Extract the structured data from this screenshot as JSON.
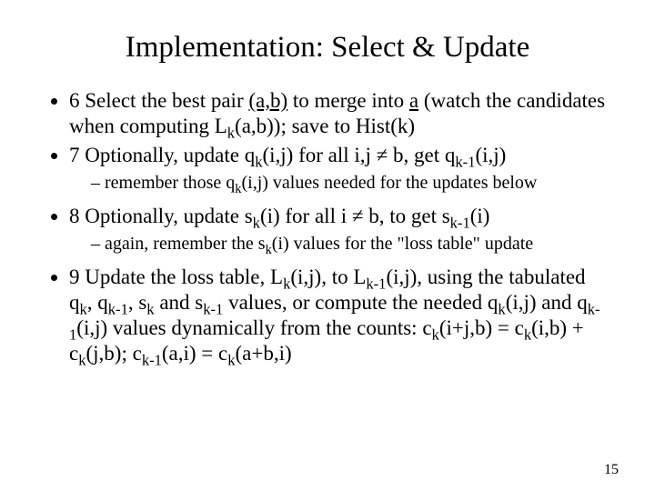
{
  "title": "Implementation: Select & Update",
  "bullets": {
    "b6": {
      "prefix": "6 Select the best pair ",
      "pair": "(a,b)",
      "mid1": " to merge into ",
      "a": "a",
      "mid2": " (watch the candidates when computing L",
      "sub1": "k",
      "tail": "(a,b)); save to Hist(k)"
    },
    "b7": {
      "prefix": "7 Optionally, update q",
      "sub1": "k",
      "mid1": "(i,j) for all i,j ≠ b, get q",
      "sub2": "k-1",
      "tail": "(i,j)"
    },
    "b7s": {
      "prefix": "remember those q",
      "sub1": "k",
      "tail": "(i,j) values needed for the updates below"
    },
    "b8": {
      "prefix": "8 Optionally, update s",
      "sub1": "k",
      "mid1": "(i) for all i ≠ b, to get s",
      "sub2": "k-1",
      "tail": "(i)"
    },
    "b8s": {
      "prefix": "again, remember the s",
      "sub1": "k",
      "tail": "(i) values for the \"loss table\" update"
    },
    "b9": {
      "prefix": "9 Update the loss table, L",
      "sub1": "k",
      "mid1": "(i,j), to L",
      "sub2": "k-1",
      "mid2": "(i,j), using the tabulated q",
      "sub3": "k",
      "mid3": ", q",
      "sub4": "k-1",
      "mid4": ", s",
      "sub5": "k",
      "mid5": " and s",
      "sub6": "k-1",
      "mid6": " values, or compute the needed q",
      "sub7": "k",
      "mid7": "(i,j) and q",
      "sub8": "k-1",
      "mid8": "(i,j) values dynamically from the counts: c",
      "sub9": "k",
      "mid9": "(i+j,b) = c",
      "sub10": "k",
      "mid10": "(i,b) + c",
      "sub11": "k",
      "mid11": "(j,b);  c",
      "sub12": "k-1",
      "mid12": "(a,i) = c",
      "sub13": "k",
      "tail": "(a+b,i)"
    }
  },
  "page_number": "15",
  "colors": {
    "bg": "#ffffff",
    "text": "#000000"
  }
}
